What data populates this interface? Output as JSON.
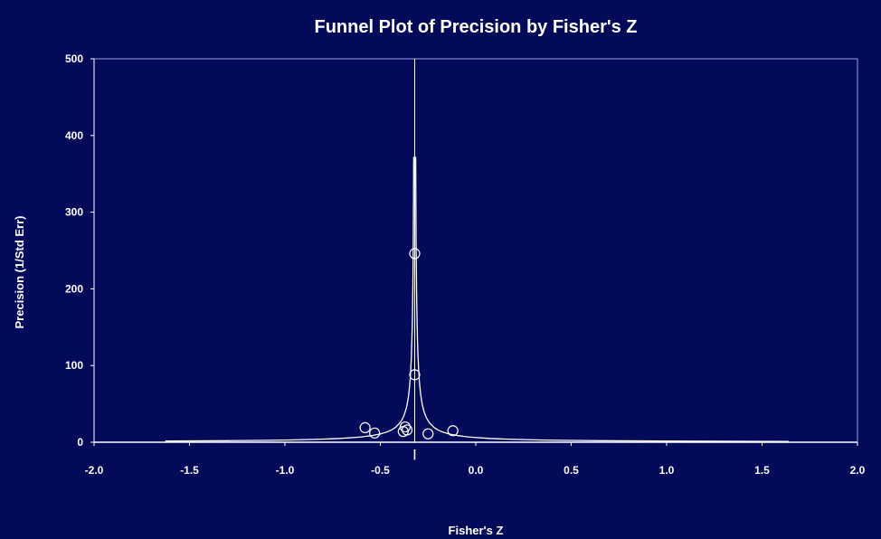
{
  "colors": {
    "background": "#030a5a",
    "foreground": "#ffffff"
  },
  "chart_data": {
    "type": "scatter",
    "title": "Funnel Plot of Precision by Fisher's Z",
    "xlabel": "Fisher's Z",
    "ylabel": "Precision (1/Std Err)",
    "xlim": [
      -2.0,
      2.0
    ],
    "ylim": [
      0,
      500
    ],
    "x_ticks": [
      "-2.0",
      "-1.5",
      "-1.0",
      "-0.5",
      "0.0",
      "0.5",
      "1.0",
      "1.5",
      "2.0"
    ],
    "y_ticks": [
      "0",
      "100",
      "200",
      "300",
      "400",
      "500"
    ],
    "grid": false,
    "legend": "none",
    "pooled_estimate": -0.32,
    "pooled_mean_marker_label": "|",
    "points": [
      {
        "x": -0.32,
        "y": 246
      },
      {
        "x": -0.32,
        "y": 88
      },
      {
        "x": -0.58,
        "y": 19
      },
      {
        "x": -0.53,
        "y": 12
      },
      {
        "x": -0.37,
        "y": 20
      },
      {
        "x": -0.36,
        "y": 16
      },
      {
        "x": -0.38,
        "y": 14
      },
      {
        "x": -0.25,
        "y": 11
      },
      {
        "x": -0.12,
        "y": 15
      }
    ]
  }
}
